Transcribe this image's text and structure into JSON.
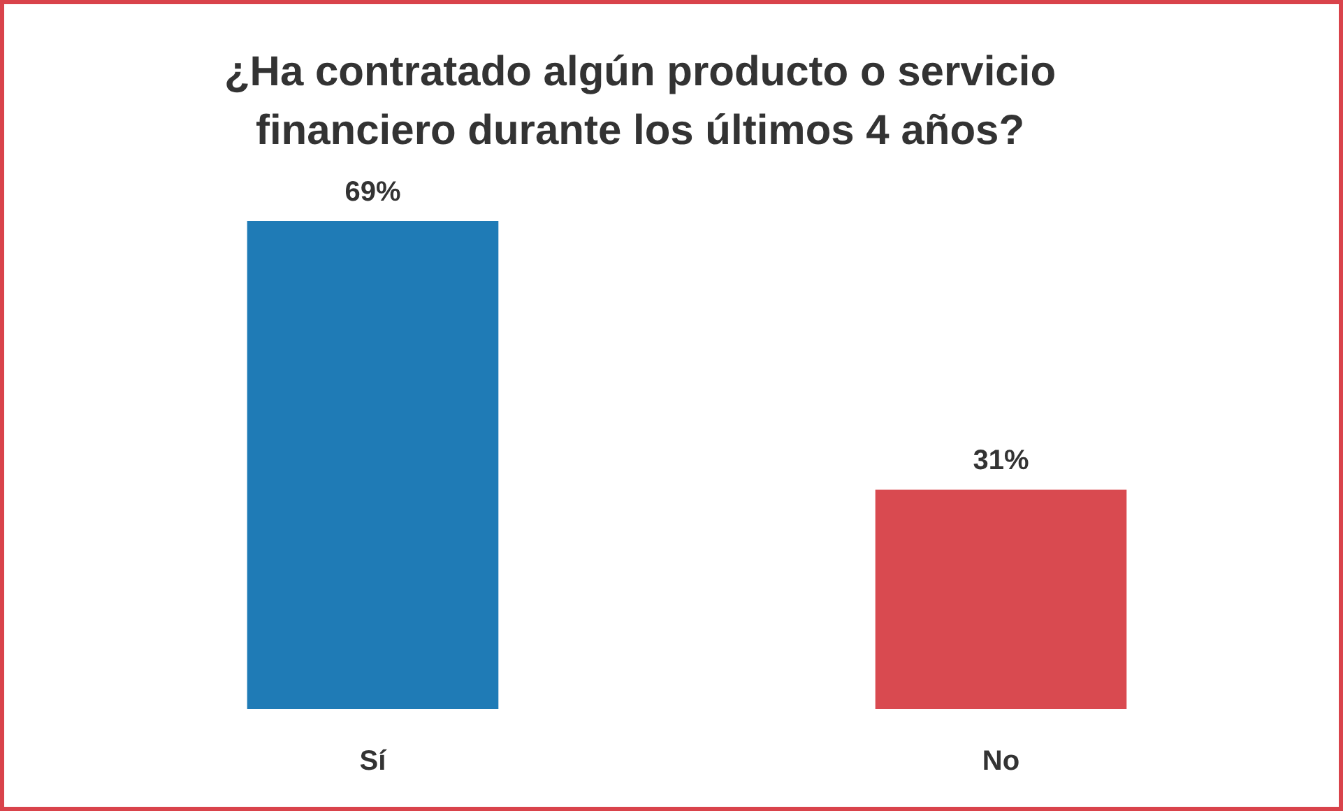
{
  "chart_data": {
    "type": "bar",
    "title": "¿Ha contratado algún producto o servicio financiero durante los últimos 4 años?",
    "categories": [
      "Sí",
      "No"
    ],
    "values": [
      69,
      31
    ],
    "colors": [
      "#1f7bb6",
      "#d94a50"
    ],
    "value_labels": [
      "69%",
      "31%"
    ]
  }
}
